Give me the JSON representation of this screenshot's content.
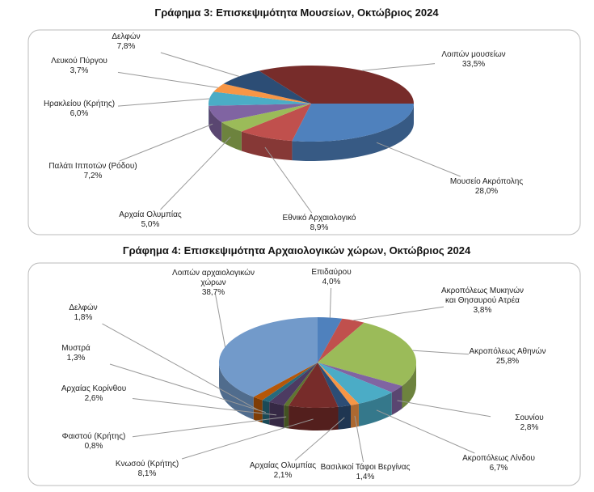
{
  "chart_data": [
    {
      "type": "pie",
      "title": "Γράφημα 3: Επισκεψιμότητα Μουσείων, Οκτώβριος 2024",
      "categories": [
        "Μουσείο Ακρόπολης",
        "Εθνικό Αρχαιολογικό",
        "Αρχαία Ολυμπίας",
        "Παλάτι Ιπποτών (Ρόδου)",
        "Ηρακλείου (Κρήτης)",
        "Λευκού Πύργου",
        "Δελφών",
        "Λοιπών μουσείων"
      ],
      "values": [
        28.0,
        8.9,
        5.0,
        7.2,
        6.0,
        3.7,
        7.8,
        33.5
      ],
      "value_labels": [
        "28,0%",
        "8,9%",
        "5,0%",
        "7,2%",
        "6,0%",
        "3,7%",
        "7,8%",
        "33,5%"
      ],
      "colors": [
        "#4f81bd",
        "#c0504d",
        "#9bbb59",
        "#8064a2",
        "#4bacc6",
        "#f79646",
        "#2c4d75",
        "#772c2a"
      ],
      "start_angle": 0
    },
    {
      "type": "pie",
      "title": "Γράφημα 4: Επισκεψιμότητα Αρχαιολογικών χώρων, Οκτώβριος 2024",
      "categories": [
        "Επιδαύρου",
        "Ακροπόλεως Μυκηνών και Θησαυρού Ατρέα",
        "Ακροπόλεως Αθηνών",
        "Σουνίου",
        "Ακροπόλεως Λίνδου",
        "Βασιλικοί Τάφοι Βεργίνας",
        "Αρχαίας Ολυμπίας",
        "Κνωσού (Κρήτης)",
        "Φαιστού (Κρήτης)",
        "Αρχαίας Κορίνθου",
        "Μυστρά",
        "Δελφών",
        "Λοιπών αρχαιολογικών χώρων"
      ],
      "values": [
        4.0,
        3.8,
        25.8,
        2.8,
        6.7,
        1.4,
        2.1,
        8.1,
        0.8,
        2.6,
        1.3,
        1.8,
        38.7
      ],
      "value_labels": [
        "4,0%",
        "3,8%",
        "25,8%",
        "2,8%",
        "6,7%",
        "1,4%",
        "2,1%",
        "8,1%",
        "0,8%",
        "2,6%",
        "1,3%",
        "1,8%",
        "38,7%"
      ],
      "colors": [
        "#4f81bd",
        "#c0504d",
        "#9bbb59",
        "#8064a2",
        "#4bacc6",
        "#f79646",
        "#2c4d75",
        "#772c2a",
        "#5f7530",
        "#4d3b62",
        "#276a7c",
        "#b65708",
        "#729aca"
      ],
      "start_angle": -90
    }
  ]
}
